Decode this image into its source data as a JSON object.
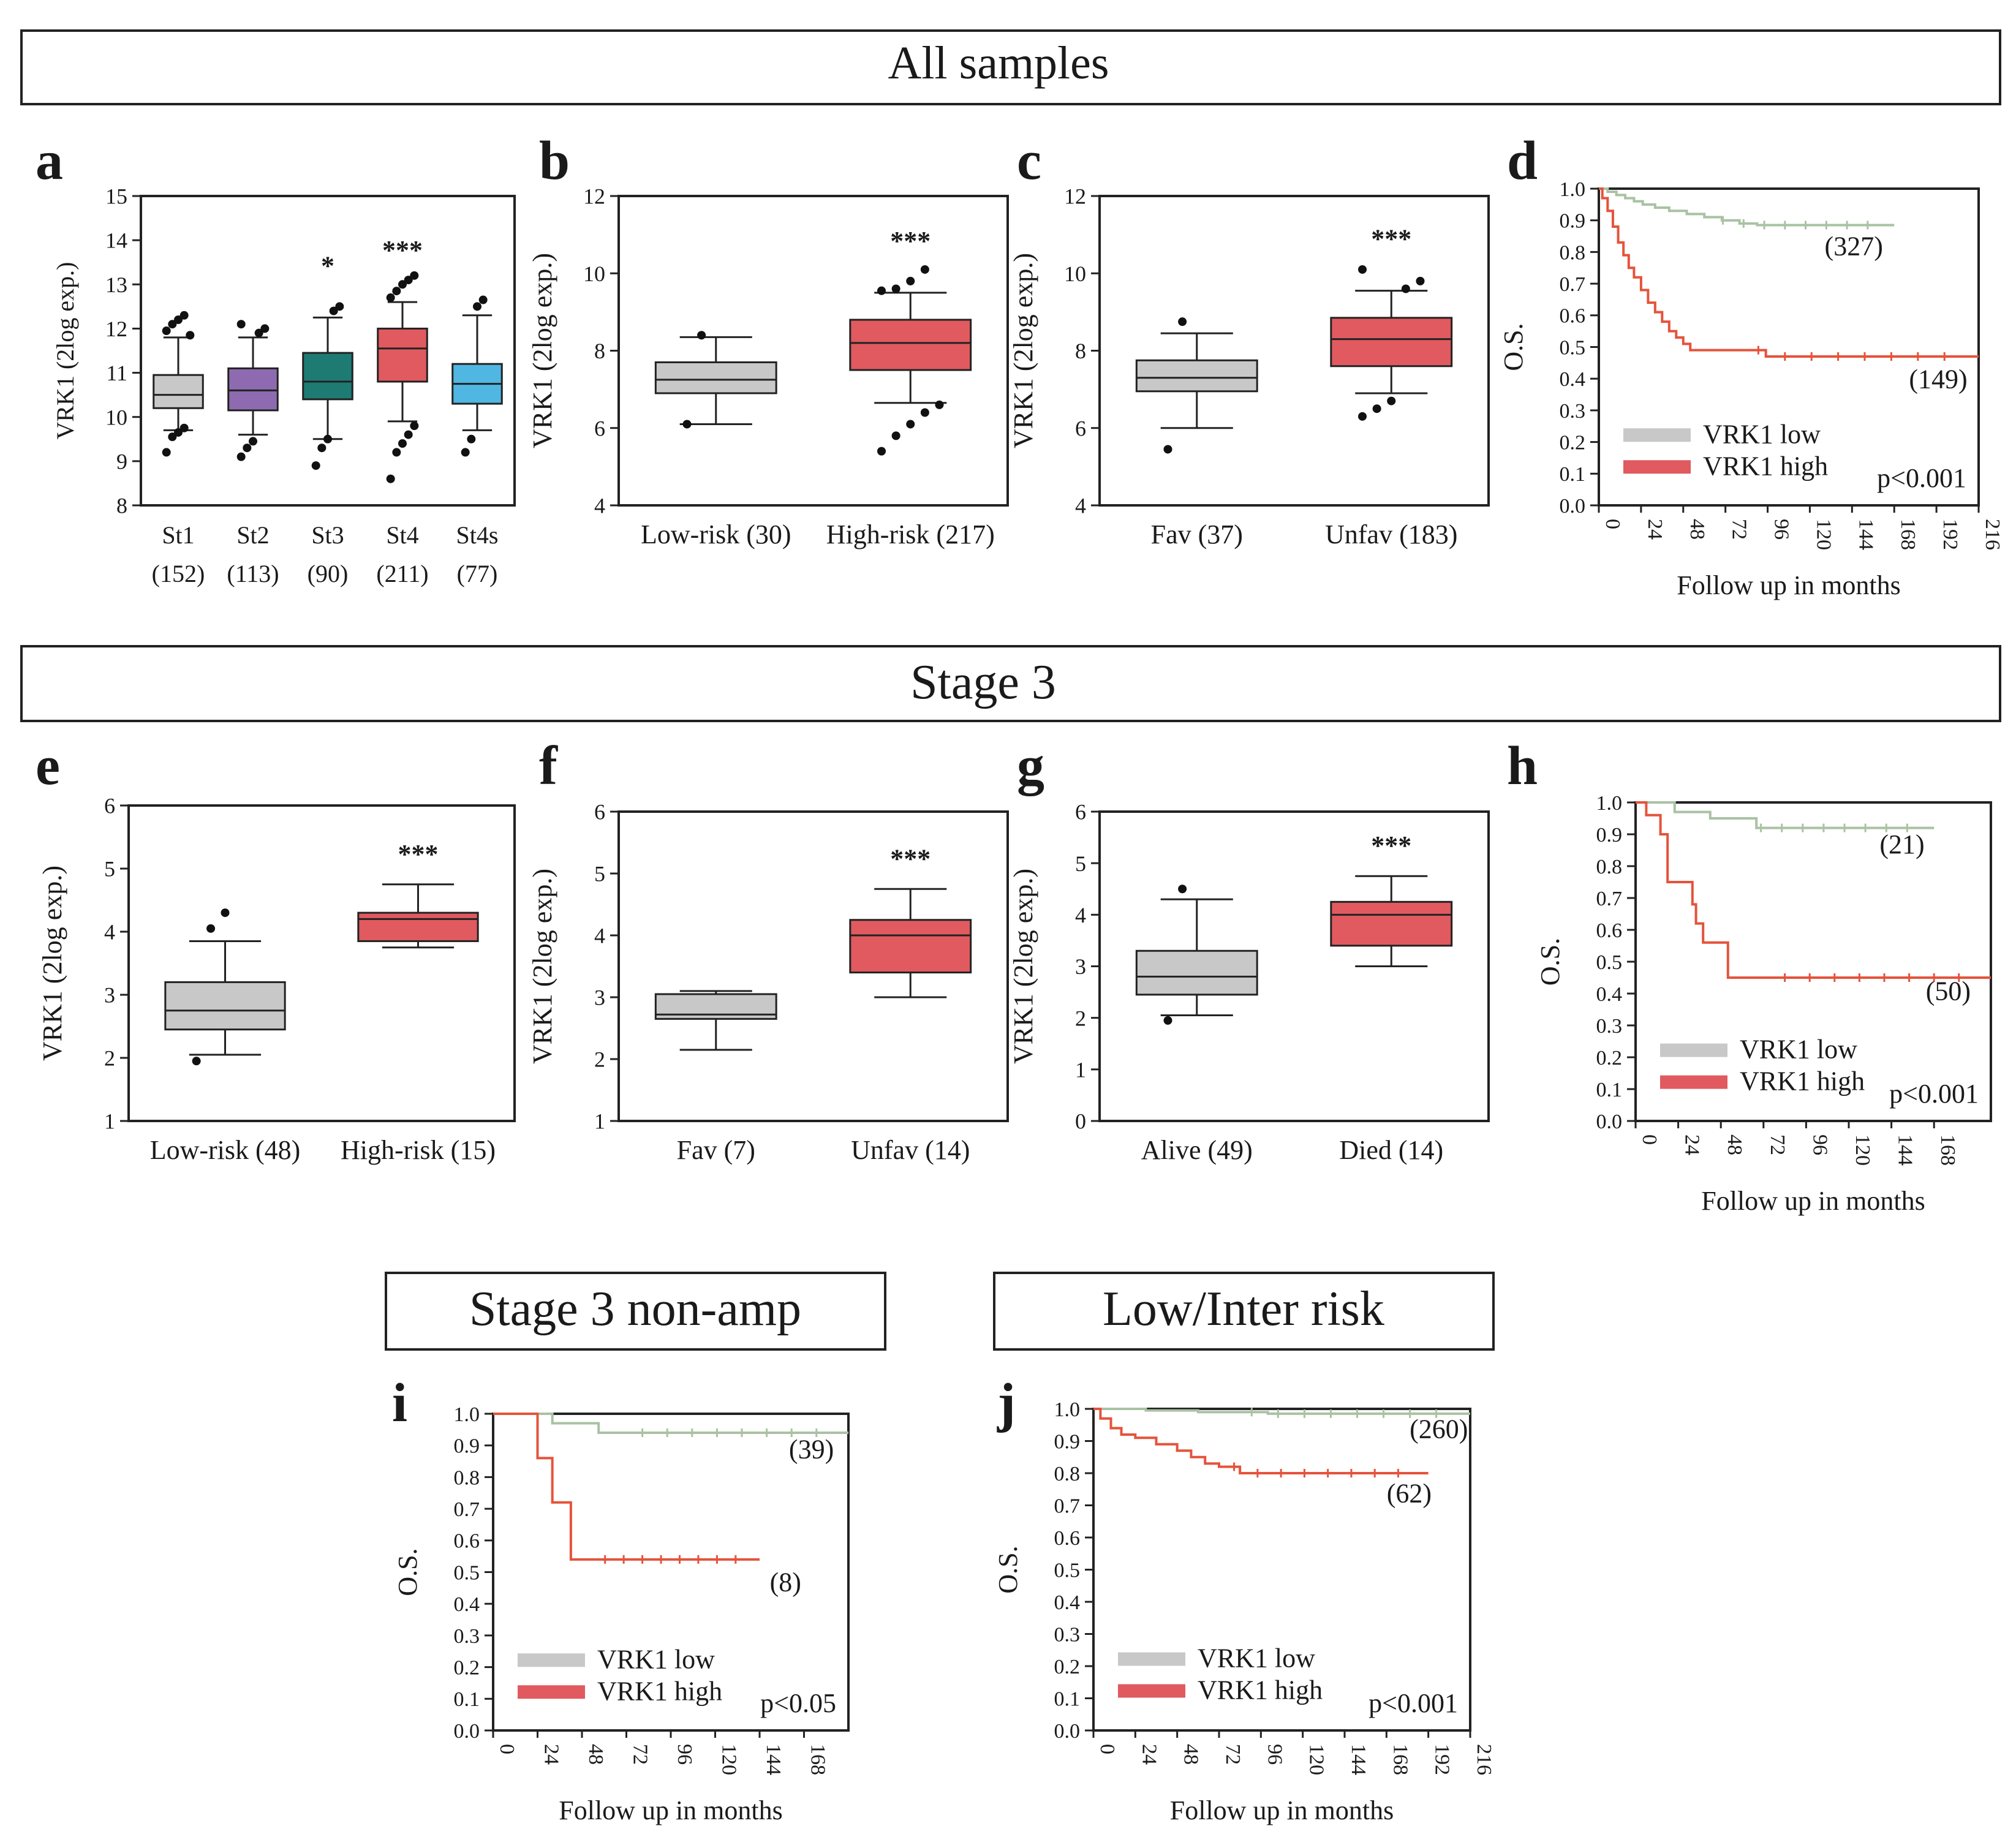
{
  "banners": {
    "all_samples": "All samples",
    "stage3": "Stage 3",
    "stage3_nonamp": "Stage 3 non-amp",
    "low_inter_risk": "Low/Inter risk"
  },
  "colors": {
    "gray": "#c8c8c8",
    "purple": "#8e6bb0",
    "teal": "#1e7b74",
    "red": "#e05a5f",
    "blue": "#4fb7e2",
    "km_low": "#a9c2a3",
    "km_high": "#e5533b"
  },
  "chart_data": [
    {
      "panel": "a",
      "type": "box",
      "ylabel": "VRK1 (2log exp.)",
      "ylim": [
        8,
        15
      ],
      "yticks": [
        8,
        9,
        10,
        11,
        12,
        13,
        14,
        15
      ],
      "groups": [
        {
          "label": "St1",
          "n": "(152)",
          "color": "gray",
          "whislo": 9.7,
          "q1": 10.2,
          "med": 10.5,
          "q3": 10.95,
          "whishi": 11.8,
          "sig": "",
          "outliers": [
            9.2,
            9.55,
            9.65,
            9.75,
            11.85,
            11.95,
            12.1,
            12.2,
            12.3
          ]
        },
        {
          "label": "St2",
          "n": "(113)",
          "color": "purple",
          "whislo": 9.6,
          "q1": 10.15,
          "med": 10.6,
          "q3": 11.1,
          "whishi": 11.8,
          "sig": "",
          "outliers": [
            9.1,
            9.3,
            9.45,
            11.9,
            12.0,
            12.1
          ]
        },
        {
          "label": "St3",
          "n": "(90)",
          "color": "teal",
          "whislo": 9.5,
          "q1": 10.4,
          "med": 10.8,
          "q3": 11.45,
          "whishi": 12.25,
          "sig": "*",
          "outliers": [
            8.9,
            9.3,
            9.5,
            12.4,
            12.5
          ]
        },
        {
          "label": "St4",
          "n": "(211)",
          "color": "red",
          "whislo": 9.9,
          "q1": 10.8,
          "med": 11.55,
          "q3": 12.0,
          "whishi": 12.6,
          "sig": "***",
          "outliers": [
            8.6,
            9.2,
            9.4,
            9.6,
            9.8,
            12.7,
            12.85,
            13.0,
            13.1,
            13.2
          ]
        },
        {
          "label": "St4s",
          "n": "(77)",
          "color": "blue",
          "whislo": 9.7,
          "q1": 10.3,
          "med": 10.75,
          "q3": 11.2,
          "whishi": 12.3,
          "sig": "",
          "outliers": [
            9.2,
            9.5,
            12.5,
            12.65
          ]
        }
      ]
    },
    {
      "panel": "b",
      "type": "box",
      "ylabel": "VRK1 (2log exp.)",
      "ylim": [
        4,
        12
      ],
      "yticks": [
        4,
        6,
        8,
        10,
        12
      ],
      "groups": [
        {
          "label": "Low-risk (30)",
          "n": "",
          "color": "gray",
          "whislo": 6.1,
          "q1": 6.9,
          "med": 7.25,
          "q3": 7.7,
          "whishi": 8.35,
          "sig": "",
          "outliers": [
            6.1,
            8.4
          ]
        },
        {
          "label": "High-risk (217)",
          "n": "",
          "color": "red",
          "whislo": 6.65,
          "q1": 7.5,
          "med": 8.2,
          "q3": 8.8,
          "whishi": 9.5,
          "sig": "***",
          "outliers": [
            5.4,
            5.8,
            6.1,
            6.4,
            6.6,
            9.55,
            9.6,
            9.8,
            10.1
          ]
        }
      ]
    },
    {
      "panel": "c",
      "type": "box",
      "ylabel": "VRK1 (2log exp.)",
      "ylim": [
        4,
        12
      ],
      "yticks": [
        4,
        6,
        8,
        10,
        12
      ],
      "groups": [
        {
          "label": "Fav (37)",
          "n": "",
          "color": "gray",
          "whislo": 6.0,
          "q1": 6.95,
          "med": 7.3,
          "q3": 7.75,
          "whishi": 8.45,
          "sig": "",
          "outliers": [
            5.45,
            8.75
          ]
        },
        {
          "label": "Unfav (183)",
          "n": "",
          "color": "red",
          "whislo": 6.9,
          "q1": 7.6,
          "med": 8.3,
          "q3": 8.85,
          "whishi": 9.55,
          "sig": "***",
          "outliers": [
            6.3,
            6.5,
            6.7,
            9.6,
            9.8,
            10.1
          ]
        }
      ]
    },
    {
      "panel": "e",
      "type": "box",
      "ylabel": "VRK1 (2log exp.)",
      "ylim": [
        1,
        6
      ],
      "yticks": [
        1,
        2,
        3,
        4,
        5,
        6
      ],
      "groups": [
        {
          "label": "Low-risk (48)",
          "n": "",
          "color": "gray",
          "whislo": 2.05,
          "q1": 2.45,
          "med": 2.75,
          "q3": 3.2,
          "whishi": 3.85,
          "sig": "",
          "outliers": [
            1.95,
            4.05,
            4.3
          ]
        },
        {
          "label": "High-risk (15)",
          "n": "",
          "color": "red",
          "whislo": 3.75,
          "q1": 3.85,
          "med": 4.2,
          "q3": 4.3,
          "whishi": 4.75,
          "sig": "***",
          "outliers": []
        }
      ]
    },
    {
      "panel": "f",
      "type": "box",
      "ylabel": "VRK1 (2log exp.)",
      "ylim": [
        1,
        6
      ],
      "yticks": [
        1,
        2,
        3,
        4,
        5,
        6
      ],
      "groups": [
        {
          "label": "Fav (7)",
          "n": "",
          "color": "gray",
          "whislo": 2.15,
          "q1": 2.65,
          "med": 2.72,
          "q3": 3.05,
          "whishi": 3.1,
          "sig": "",
          "outliers": []
        },
        {
          "label": "Unfav (14)",
          "n": "",
          "color": "red",
          "whislo": 3.0,
          "q1": 3.4,
          "med": 4.0,
          "q3": 4.25,
          "whishi": 4.75,
          "sig": "***",
          "outliers": []
        }
      ]
    },
    {
      "panel": "g",
      "type": "box",
      "ylabel": "VRK1 (2log exp.)",
      "ylim": [
        0,
        6
      ],
      "yticks": [
        0,
        1,
        2,
        3,
        4,
        5,
        6
      ],
      "groups": [
        {
          "label": "Alive (49)",
          "n": "",
          "color": "gray",
          "whislo": 2.05,
          "q1": 2.45,
          "med": 2.8,
          "q3": 3.3,
          "whishi": 4.3,
          "sig": "",
          "outliers": [
            1.95,
            4.5
          ]
        },
        {
          "label": "Died (14)",
          "n": "",
          "color": "red",
          "whislo": 3.0,
          "q1": 3.4,
          "med": 4.0,
          "q3": 4.25,
          "whishi": 4.75,
          "sig": "***",
          "outliers": []
        }
      ]
    },
    {
      "panel": "d",
      "type": "line",
      "subtype": "km",
      "ylabel": "O.S.",
      "xlabel": "Follow up in months",
      "xlim": [
        0,
        216
      ],
      "xticks": [
        0,
        24,
        48,
        72,
        96,
        120,
        144,
        168,
        192,
        216
      ],
      "ylim": [
        0,
        1
      ],
      "yticks": [
        "0.0",
        "0.1",
        "0.2",
        "0.3",
        "0.4",
        "0.5",
        "0.6",
        "0.7",
        "0.8",
        "0.9",
        "1.0"
      ],
      "legend": [
        "VRK1 low",
        "VRK1 high"
      ],
      "pvalue": "p<0.001",
      "series": [
        {
          "name": "VRK1 low",
          "color": "km_low",
          "n": "(327)",
          "label_at": [
            145,
            0.79
          ],
          "points": [
            [
              0,
              1.0
            ],
            [
              5,
              0.99
            ],
            [
              10,
              0.98
            ],
            [
              15,
              0.97
            ],
            [
              20,
              0.96
            ],
            [
              25,
              0.95
            ],
            [
              32,
              0.94
            ],
            [
              40,
              0.93
            ],
            [
              50,
              0.92
            ],
            [
              60,
              0.91
            ],
            [
              70,
              0.9
            ],
            [
              80,
              0.89
            ],
            [
              90,
              0.885
            ],
            [
              100,
              0.885
            ],
            [
              168,
              0.885
            ]
          ]
        },
        {
          "name": "VRK1 high",
          "color": "km_high",
          "n": "(149)",
          "label_at": [
            193,
            0.37
          ],
          "points": [
            [
              0,
              1.0
            ],
            [
              2,
              0.97
            ],
            [
              5,
              0.93
            ],
            [
              8,
              0.88
            ],
            [
              11,
              0.83
            ],
            [
              14,
              0.79
            ],
            [
              17,
              0.75
            ],
            [
              20,
              0.72
            ],
            [
              24,
              0.68
            ],
            [
              28,
              0.64
            ],
            [
              32,
              0.61
            ],
            [
              36,
              0.58
            ],
            [
              40,
              0.55
            ],
            [
              44,
              0.53
            ],
            [
              48,
              0.51
            ],
            [
              52,
              0.49
            ],
            [
              56,
              0.49
            ],
            [
              70,
              0.49
            ],
            [
              95,
              0.47
            ],
            [
              120,
              0.47
            ],
            [
              216,
              0.47
            ]
          ]
        }
      ]
    },
    {
      "panel": "h",
      "type": "line",
      "subtype": "km",
      "ylabel": "O.S.",
      "xlabel": "Follow up in months",
      "xlim": [
        0,
        200
      ],
      "xticks": [
        0,
        24,
        48,
        72,
        96,
        120,
        144,
        168
      ],
      "ylim": [
        0,
        1
      ],
      "yticks": [
        "0.0",
        "0.1",
        "0.2",
        "0.3",
        "0.4",
        "0.5",
        "0.6",
        "0.7",
        "0.8",
        "0.9",
        "1.0"
      ],
      "legend": [
        "VRK1 low",
        "VRK1 high"
      ],
      "pvalue": "p<0.001",
      "series": [
        {
          "name": "VRK1 low",
          "color": "km_low",
          "n": "(21)",
          "label_at": [
            150,
            0.84
          ],
          "points": [
            [
              0,
              1.0
            ],
            [
              20,
              1.0
            ],
            [
              22,
              0.97
            ],
            [
              40,
              0.97
            ],
            [
              42,
              0.95
            ],
            [
              66,
              0.95
            ],
            [
              68,
              0.92
            ],
            [
              168,
              0.92
            ]
          ]
        },
        {
          "name": "VRK1 high",
          "color": "km_high",
          "n": "(50)",
          "label_at": [
            176,
            0.38
          ],
          "points": [
            [
              0,
              1.0
            ],
            [
              4,
              1.0
            ],
            [
              6,
              0.96
            ],
            [
              12,
              0.96
            ],
            [
              14,
              0.9
            ],
            [
              18,
              0.75
            ],
            [
              30,
              0.75
            ],
            [
              32,
              0.68
            ],
            [
              34,
              0.62
            ],
            [
              38,
              0.56
            ],
            [
              48,
              0.56
            ],
            [
              52,
              0.45
            ],
            [
              200,
              0.45
            ]
          ]
        }
      ]
    },
    {
      "panel": "i",
      "type": "line",
      "subtype": "km",
      "ylabel": "O.S.",
      "xlabel": "Follow up in months",
      "xlim": [
        0,
        192
      ],
      "xticks": [
        0,
        24,
        48,
        72,
        96,
        120,
        144,
        168
      ],
      "ylim": [
        0,
        1
      ],
      "yticks": [
        "0.0",
        "0.1",
        "0.2",
        "0.3",
        "0.4",
        "0.5",
        "0.6",
        "0.7",
        "0.8",
        "0.9",
        "1.0"
      ],
      "legend": [
        "VRK1 low",
        "VRK1 high"
      ],
      "pvalue": "p<0.05",
      "series": [
        {
          "name": "VRK1 low",
          "color": "km_low",
          "n": "(39)",
          "label_at": [
            172,
            0.86
          ],
          "points": [
            [
              0,
              1.0
            ],
            [
              30,
              1.0
            ],
            [
              32,
              0.97
            ],
            [
              55,
              0.97
            ],
            [
              57,
              0.94
            ],
            [
              192,
              0.94
            ]
          ]
        },
        {
          "name": "VRK1 high",
          "color": "km_high",
          "n": "(8)",
          "label_at": [
            158,
            0.44
          ],
          "points": [
            [
              0,
              1.0
            ],
            [
              22,
              1.0
            ],
            [
              24,
              0.86
            ],
            [
              30,
              0.86
            ],
            [
              32,
              0.72
            ],
            [
              40,
              0.72
            ],
            [
              42,
              0.54
            ],
            [
              144,
              0.54
            ]
          ]
        }
      ]
    },
    {
      "panel": "j",
      "type": "line",
      "subtype": "km",
      "ylabel": "O.S.",
      "xlabel": "Follow up in months",
      "xlim": [
        0,
        216
      ],
      "xticks": [
        0,
        24,
        48,
        72,
        96,
        120,
        144,
        168,
        192,
        216
      ],
      "ylim": [
        0,
        1
      ],
      "yticks": [
        "0.0",
        "0.1",
        "0.2",
        "0.3",
        "0.4",
        "0.5",
        "0.6",
        "0.7",
        "0.8",
        "0.9",
        "1.0"
      ],
      "legend": [
        "VRK1 low",
        "VRK1 high"
      ],
      "pvalue": "p<0.001",
      "series": [
        {
          "name": "VRK1 low",
          "color": "km_low",
          "n": "(260)",
          "label_at": [
            198,
            0.91
          ],
          "points": [
            [
              0,
              1.0
            ],
            [
              30,
              0.995
            ],
            [
              60,
              0.99
            ],
            [
              100,
              0.985
            ],
            [
              216,
              0.985
            ]
          ]
        },
        {
          "name": "VRK1 high",
          "color": "km_high",
          "n": "(62)",
          "label_at": [
            181,
            0.71
          ],
          "points": [
            [
              0,
              1.0
            ],
            [
              4,
              0.97
            ],
            [
              10,
              0.94
            ],
            [
              16,
              0.92
            ],
            [
              24,
              0.91
            ],
            [
              36,
              0.89
            ],
            [
              48,
              0.87
            ],
            [
              56,
              0.85
            ],
            [
              64,
              0.83
            ],
            [
              72,
              0.82
            ],
            [
              84,
              0.8
            ],
            [
              192,
              0.8
            ]
          ]
        }
      ]
    }
  ]
}
